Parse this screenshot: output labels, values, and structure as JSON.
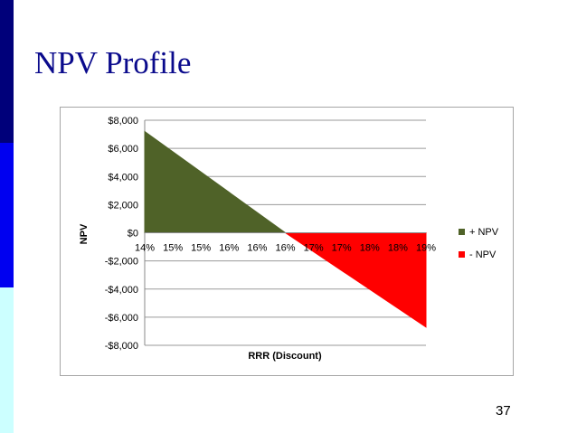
{
  "slide": {
    "title": "NPV Profile",
    "page_number": "37",
    "colors": {
      "sidebar_top": "#00007a",
      "sidebar_mid": "#0000f0",
      "sidebar_bottom": "#ccffff",
      "title": "#0a0a8c"
    }
  },
  "chart_data": {
    "type": "area",
    "title": "",
    "xlabel": "RRR (Discount)",
    "ylabel": "NPV",
    "x_tick_labels": [
      "14%",
      "15%",
      "15%",
      "16%",
      "16%",
      "16%",
      "17%",
      "17%",
      "18%",
      "18%",
      "19%"
    ],
    "y_tick_labels": [
      "$8,000",
      "$6,000",
      "$4,000",
      "$2,000",
      "$0",
      "-$2,000",
      "-$4,000",
      "-$6,000",
      "-$8,000"
    ],
    "ylim": [
      -8000,
      8000
    ],
    "grid": true,
    "legend_position": "right",
    "series": [
      {
        "name": "+ NPV",
        "color": "#4f6228",
        "x_index": [
          0,
          5
        ],
        "values": [
          7200,
          0
        ]
      },
      {
        "name": "- NPV",
        "color": "#ff0000",
        "x_index": [
          5,
          10
        ],
        "values": [
          0,
          -6700
        ]
      }
    ]
  }
}
